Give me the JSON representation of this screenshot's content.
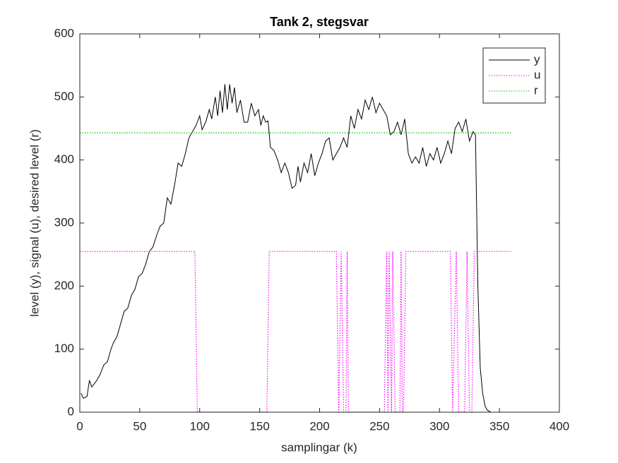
{
  "chart_data": {
    "type": "line",
    "title": "Tank 2, stegsvar",
    "xlabel": "samplingar (k)",
    "ylabel": "level (y), signal (u), desired level (r)",
    "xlim": [
      0,
      400
    ],
    "xticks": [
      0,
      50,
      100,
      150,
      200,
      250,
      300,
      350,
      400
    ],
    "ylim": [
      0,
      600
    ],
    "yticks": [
      0,
      100,
      200,
      300,
      400,
      500,
      600
    ],
    "legend": "upper-right",
    "series": [
      {
        "name": "y",
        "color": "#000000",
        "style": "solid",
        "x": [
          1,
          3,
          6,
          8,
          10,
          14,
          17,
          20,
          23,
          26,
          28,
          31,
          34,
          37,
          40,
          43,
          46,
          49,
          52,
          55,
          58,
          61,
          64,
          67,
          70,
          73,
          76,
          79,
          82,
          85,
          88,
          91,
          94,
          97,
          100,
          102,
          105,
          108,
          110,
          113,
          115,
          117,
          119,
          121,
          123,
          125,
          127,
          129,
          131,
          134,
          137,
          140,
          143,
          146,
          149,
          151,
          153,
          155,
          157,
          159,
          162,
          165,
          168,
          171,
          174,
          177,
          180,
          182,
          184,
          187,
          190,
          193,
          196,
          199,
          202,
          205,
          208,
          211,
          214,
          217,
          220,
          223,
          226,
          229,
          232,
          235,
          238,
          241,
          244,
          247,
          250,
          253,
          256,
          259,
          262,
          265,
          268,
          271,
          274,
          277,
          280,
          283,
          286,
          289,
          292,
          295,
          298,
          301,
          304,
          307,
          310,
          313,
          316,
          319,
          322,
          325,
          328,
          330,
          332,
          334,
          336,
          338,
          340,
          343,
          360
        ],
        "values": [
          30,
          22,
          25,
          50,
          40,
          50,
          60,
          75,
          80,
          100,
          110,
          120,
          140,
          160,
          165,
          185,
          195,
          215,
          220,
          235,
          255,
          262,
          280,
          295,
          300,
          340,
          330,
          360,
          395,
          390,
          410,
          435,
          445,
          455,
          470,
          448,
          460,
          480,
          465,
          500,
          470,
          510,
          475,
          520,
          480,
          520,
          490,
          515,
          475,
          495,
          460,
          460,
          490,
          470,
          480,
          455,
          470,
          460,
          462,
          420,
          415,
          400,
          380,
          395,
          380,
          355,
          360,
          390,
          365,
          395,
          380,
          410,
          375,
          395,
          410,
          430,
          435,
          400,
          410,
          420,
          435,
          420,
          470,
          450,
          480,
          465,
          495,
          480,
          500,
          475,
          490,
          480,
          470,
          440,
          445,
          460,
          440,
          465,
          410,
          395,
          405,
          395,
          420,
          390,
          410,
          400,
          420,
          395,
          410,
          430,
          410,
          450,
          460,
          445,
          465,
          430,
          445,
          440,
          200,
          70,
          30,
          10,
          3,
          0,
          0
        ]
      },
      {
        "name": "u",
        "color": "#ff00ff",
        "style": "dotted",
        "x": [
          0,
          96,
          98,
          156,
          158,
          214,
          216,
          218,
          220,
          222,
          223,
          224,
          254,
          256,
          257,
          258,
          260,
          261,
          263,
          267,
          268,
          269,
          270,
          272,
          309,
          311,
          314,
          316,
          321,
          323,
          325,
          327,
          329,
          360
        ],
        "values": [
          255,
          255,
          0,
          0,
          255,
          255,
          0,
          255,
          0,
          0,
          255,
          0,
          0,
          255,
          0,
          255,
          0,
          255,
          0,
          0,
          255,
          0,
          0,
          255,
          255,
          0,
          255,
          0,
          0,
          255,
          0,
          0,
          255,
          255
        ]
      },
      {
        "name": "r",
        "color": "#00c000",
        "style": "dotted",
        "x": [
          0,
          360
        ],
        "values": [
          443,
          443
        ]
      }
    ]
  }
}
